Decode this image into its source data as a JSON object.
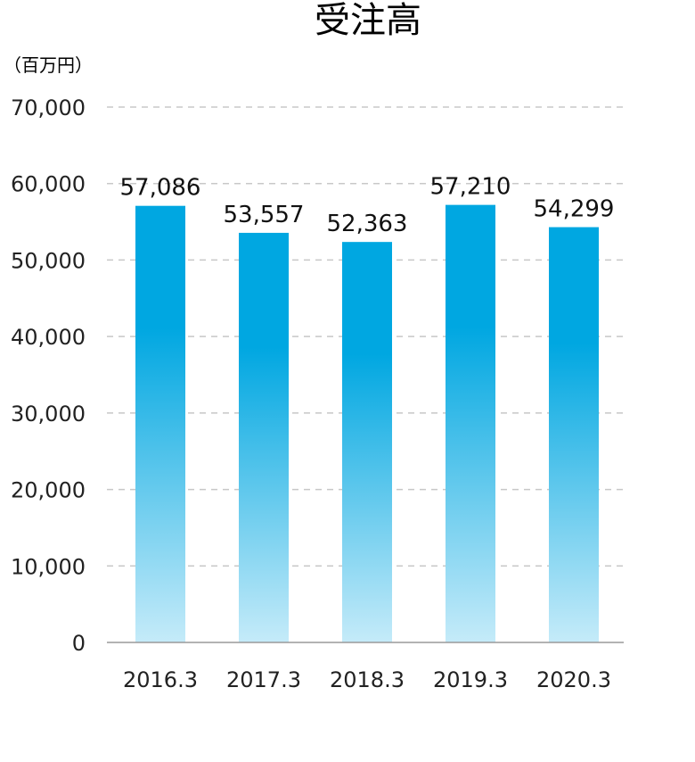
{
  "chart_data": {
    "type": "bar",
    "title": "受注高",
    "unit_label": "（百万円）",
    "categories": [
      "2016.3",
      "2017.3",
      "2018.3",
      "2019.3",
      "2020.3"
    ],
    "values": [
      57086,
      53557,
      52363,
      57210,
      54299
    ],
    "value_labels": [
      "57,086",
      "53,557",
      "52,363",
      "57,210",
      "54,299"
    ],
    "ylim": [
      0,
      70000
    ],
    "yticks": [
      0,
      10000,
      20000,
      30000,
      40000,
      50000,
      60000,
      70000
    ],
    "ytick_labels": [
      "0",
      "10,000",
      "20,000",
      "30,000",
      "40,000",
      "50,000",
      "60,000",
      "70,000"
    ],
    "grid": true,
    "legend": "none",
    "colors": {
      "bar_top": "#00a7e1",
      "bar_bottom": "#c5ebf9",
      "grid": "#c8c8c8",
      "axis": "#9a9a9a"
    }
  }
}
